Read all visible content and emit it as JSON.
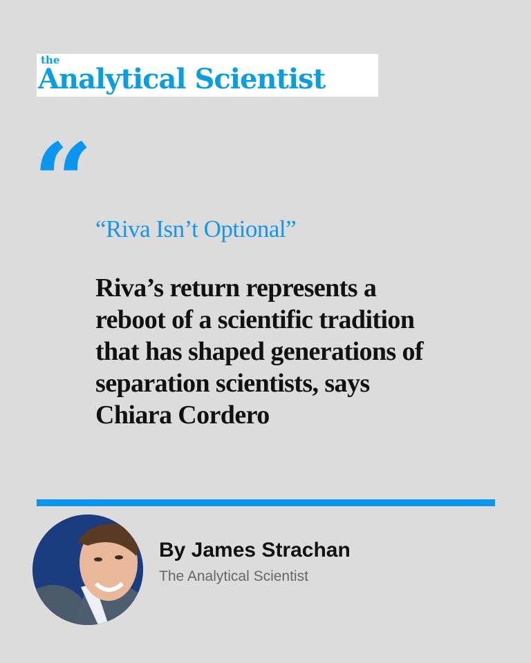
{
  "logo": {
    "small": "the",
    "main": "Analytical Scientist"
  },
  "quote_icon": "quote-open-icon",
  "headline": "“Riva Isn’t Optional”",
  "body": "Riva’s return represents a reboot of a scientific tradition that has shaped generations of separation scientists, says Chiara Cordero",
  "author": {
    "byline": "By James Strachan",
    "publication": "The Analytical Scientist"
  },
  "colors": {
    "accent": "#0a96f0",
    "background": "#dcdcdc",
    "logo": "#0a9ee0"
  }
}
